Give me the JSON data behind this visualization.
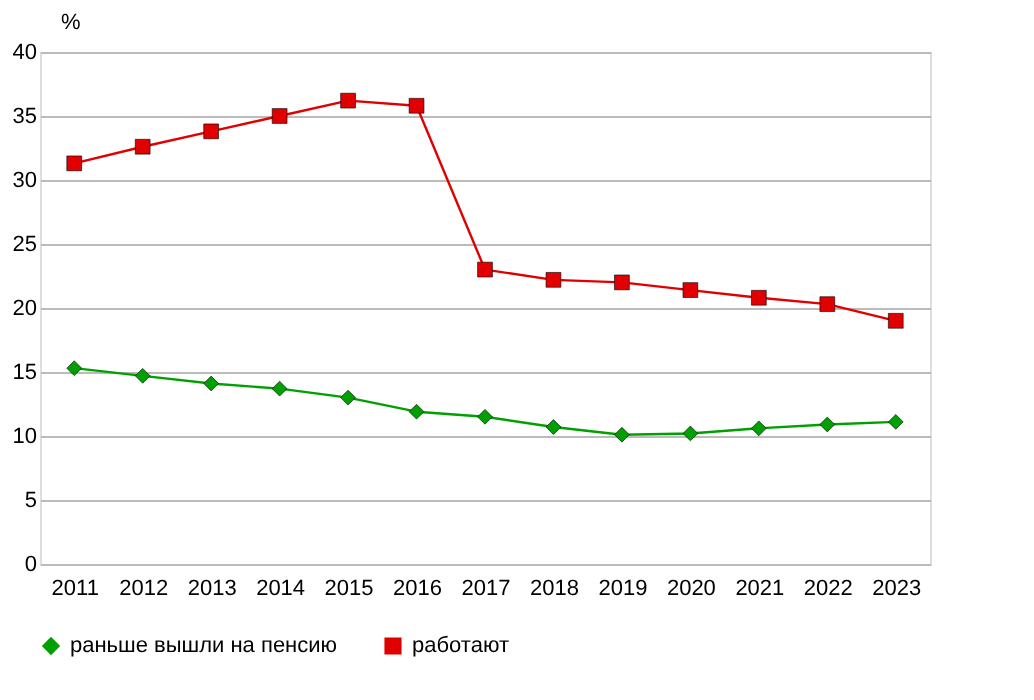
{
  "chart_data": {
    "type": "line",
    "ylabel": "%",
    "categories": [
      "2011",
      "2012",
      "2013",
      "2014",
      "2015",
      "2016",
      "2017",
      "2018",
      "2019",
      "2020",
      "2021",
      "2022",
      "2023"
    ],
    "series": [
      {
        "name": "раньше вышли на пенсию",
        "color": "#00a000",
        "marker": "diamond",
        "values": [
          15.3,
          14.7,
          14.1,
          13.7,
          13.0,
          11.9,
          11.5,
          10.7,
          10.1,
          10.2,
          10.6,
          10.9,
          11.1
        ]
      },
      {
        "name": "работают",
        "color": "#e00000",
        "marker": "square",
        "values": [
          31.3,
          32.6,
          33.8,
          35.0,
          36.2,
          35.8,
          23.0,
          22.2,
          22.0,
          21.4,
          20.8,
          20.3,
          19.0
        ]
      }
    ],
    "ylim": [
      0,
      40
    ],
    "yticks": [
      0,
      5,
      10,
      15,
      20,
      25,
      30,
      35,
      40
    ],
    "grid": "y",
    "legend": "bottom",
    "line_style": "solid"
  }
}
